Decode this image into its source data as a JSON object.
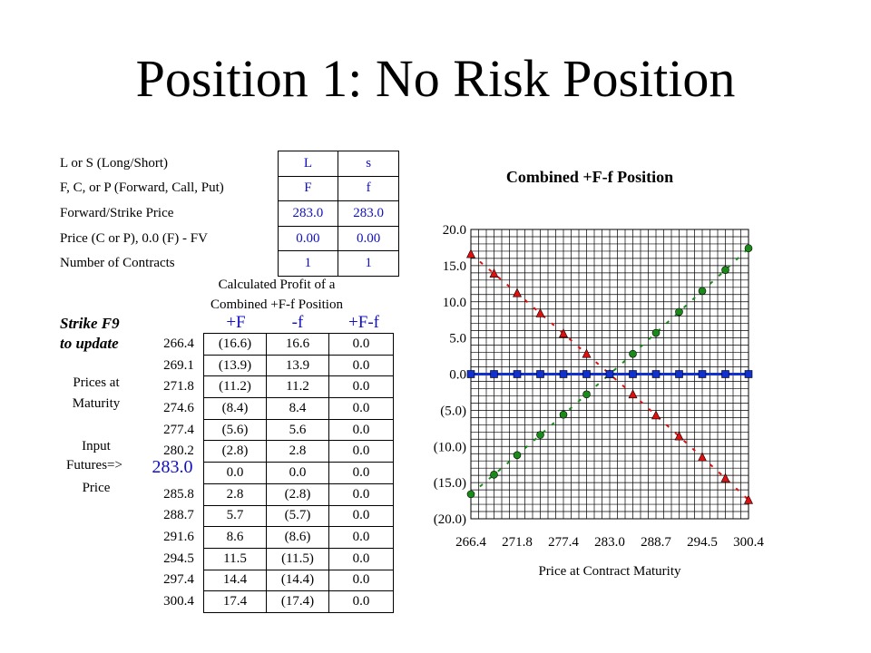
{
  "title": "Position 1:  No Risk Position",
  "params": {
    "rows": [
      {
        "label": "L or S (Long/Short)",
        "v1": "L",
        "v2": "s"
      },
      {
        "label": "F, C, or P (Forward, Call, Put)",
        "v1": "F",
        "v2": "f"
      },
      {
        "label": "Forward/Strike Price",
        "v1": "283.0",
        "v2": "283.0"
      },
      {
        "label": "Price (C or P), 0.0 (F) - FV",
        "v1": "0.00",
        "v2": "0.00"
      },
      {
        "label": "Number of Contracts",
        "v1": "1",
        "v2": "1"
      }
    ]
  },
  "caption_line1": "Calculated Profit of a",
  "caption_line2": "Combined +F-f Position",
  "strike_note_1": "Strike F9",
  "strike_note_2": "to update",
  "col_headers": {
    "h1": "+F",
    "h2": "-f",
    "h3": "+F-f"
  },
  "side_labels": {
    "prices_1": "Prices at",
    "prices_2": "Maturity",
    "input": "Input",
    "futures": "Futures=>",
    "futures_value": "283.0",
    "price": "Price"
  },
  "table": {
    "rows": [
      {
        "p": "266.4",
        "a": "(16.6)",
        "b": "16.6",
        "c": "0.0"
      },
      {
        "p": "269.1",
        "a": "(13.9)",
        "b": "13.9",
        "c": "0.0"
      },
      {
        "p": "271.8",
        "a": "(11.2)",
        "b": "11.2",
        "c": "0.0"
      },
      {
        "p": "274.6",
        "a": "(8.4)",
        "b": "8.4",
        "c": "0.0"
      },
      {
        "p": "277.4",
        "a": "(5.6)",
        "b": "5.6",
        "c": "0.0"
      },
      {
        "p": "280.2",
        "a": "(2.8)",
        "b": "2.8",
        "c": "0.0"
      },
      {
        "p": "",
        "a": "0.0",
        "b": "0.0",
        "c": "0.0"
      },
      {
        "p": "285.8",
        "a": "2.8",
        "b": "(2.8)",
        "c": "0.0"
      },
      {
        "p": "288.7",
        "a": "5.7",
        "b": "(5.7)",
        "c": "0.0"
      },
      {
        "p": "291.6",
        "a": "8.6",
        "b": "(8.6)",
        "c": "0.0"
      },
      {
        "p": "294.5",
        "a": "11.5",
        "b": "(11.5)",
        "c": "0.0"
      },
      {
        "p": "297.4",
        "a": "14.4",
        "b": "(14.4)",
        "c": "0.0"
      },
      {
        "p": "300.4",
        "a": "17.4",
        "b": "(17.4)",
        "c": "0.0"
      }
    ]
  },
  "chart_data": {
    "type": "line",
    "title": "Combined +F-f Position",
    "xlabel": "Price at Contract Maturity",
    "ylabel": "",
    "ylim": [
      -20,
      20
    ],
    "grid": true,
    "x": [
      266.4,
      269.1,
      271.8,
      274.6,
      277.4,
      280.2,
      283.0,
      285.8,
      288.7,
      291.6,
      294.5,
      297.4,
      300.4
    ],
    "x_tick_labels": [
      "266.4",
      "271.8",
      "277.4",
      "283.0",
      "288.7",
      "294.5",
      "300.4"
    ],
    "y_tick_labels": [
      "20.0",
      "15.0",
      "10.0",
      "5.0",
      "0.0",
      "(5.0)",
      "(10.0)",
      "(15.0)",
      "(20.0)"
    ],
    "series": [
      {
        "values": [
          -16.6,
          -13.9,
          -11.2,
          -8.4,
          -5.6,
          -2.8,
          0.0,
          2.8,
          5.7,
          8.6,
          11.5,
          14.4,
          17.4
        ],
        "color": "#1a8a1a",
        "marker": "circle"
      },
      {
        "values": [
          16.6,
          13.9,
          11.2,
          8.4,
          5.6,
          2.8,
          0.0,
          -2.8,
          -5.7,
          -8.6,
          -11.5,
          -14.4,
          -17.4
        ],
        "color": "#e01010",
        "marker": "triangle"
      },
      {
        "values": [
          0.0,
          0.0,
          0.0,
          0.0,
          0.0,
          0.0,
          0.0,
          0.0,
          0.0,
          0.0,
          0.0,
          0.0,
          0.0
        ],
        "color": "#1030d0",
        "marker": "square"
      }
    ]
  }
}
